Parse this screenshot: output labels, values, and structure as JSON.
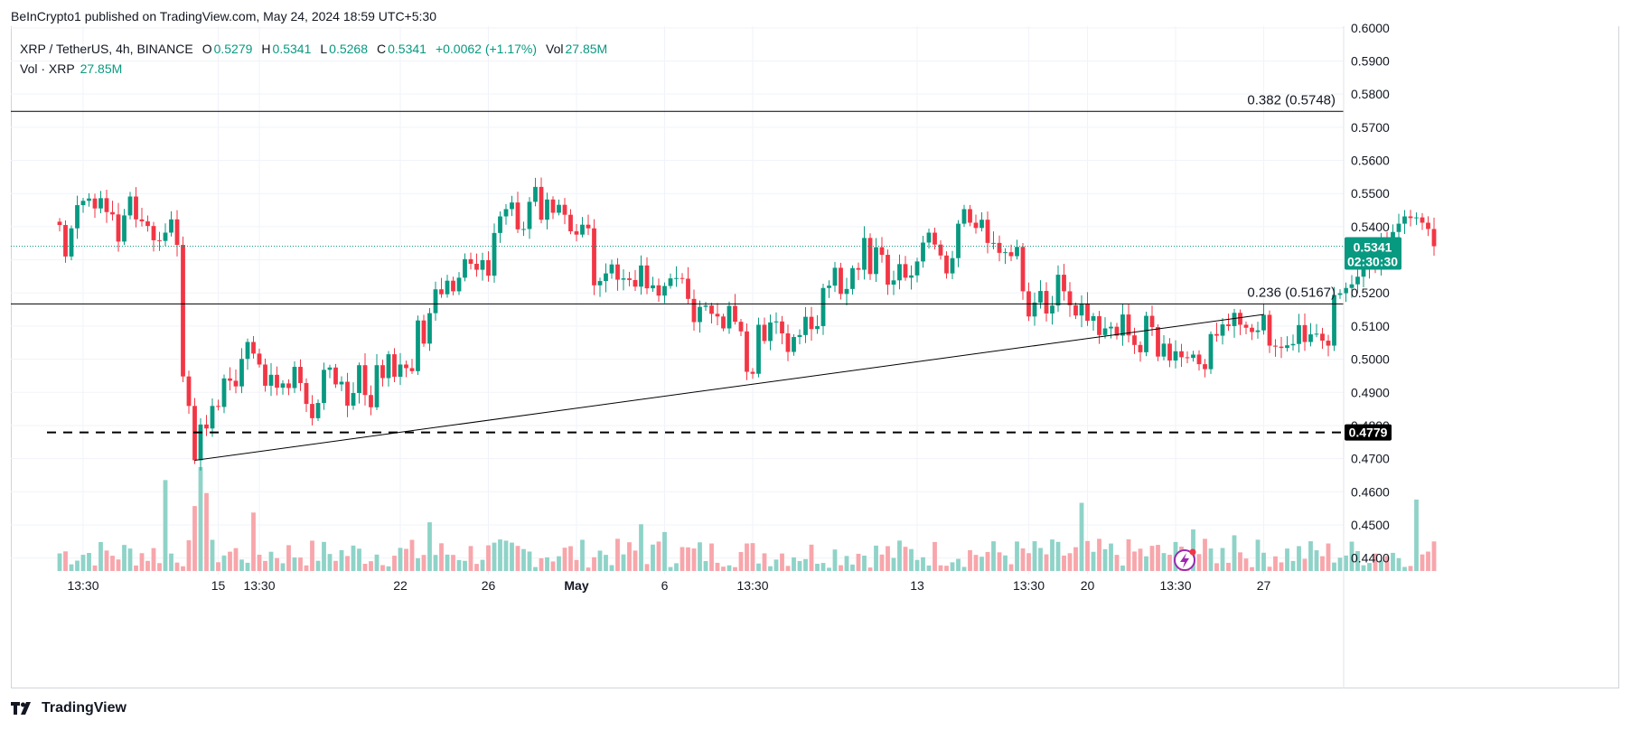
{
  "header": {
    "publisher_line": "BeInCrypto1 published on TradingView.com, May 24, 2024 18:59 UTC+5:30"
  },
  "legend": {
    "symbol": "XRP / TetherUS, 4h, BINANCE",
    "open_label": "O",
    "open": "0.5279",
    "high_label": "H",
    "high": "0.5341",
    "low_label": "L",
    "low": "0.5268",
    "close_label": "C",
    "close": "0.5341",
    "change": "+0.0062 (+1.17%)",
    "vol_label": "Vol",
    "vol": "27.85M",
    "vol_row_label": "Vol · XRP",
    "vol_row_value": "27.85M"
  },
  "footer": {
    "brand": "TradingView"
  },
  "colors": {
    "up": "#089981",
    "down": "#f23645",
    "vol_up": "#8fd3c8",
    "vol_down": "#f7a6ab",
    "grid": "#f0f3fa",
    "text": "#131722"
  },
  "chart_data": {
    "type": "candlestick",
    "title": "XRP / TetherUS, 4h, BINANCE",
    "ylim": [
      0.435,
      0.6005
    ],
    "y_ticks": [
      "0.6000",
      "0.5900",
      "0.5800",
      "0.5700",
      "0.5600",
      "0.5500",
      "0.5400",
      "0.5300",
      "0.5200",
      "0.5100",
      "0.5000",
      "0.4900",
      "0.4800",
      "0.4700",
      "0.4600",
      "0.4500",
      "0.4400"
    ],
    "x_ticks": [
      "13:30",
      "15",
      "13:30",
      "22",
      "26",
      "May",
      "6",
      "13:30",
      "13",
      "13:30",
      "20",
      "13:30",
      "27"
    ],
    "horizontal_levels": [
      {
        "label": "0.382 (0.5748)",
        "value": 0.5748,
        "style": "solid"
      },
      {
        "label": "0.236 (0.5167)",
        "value": 0.5167,
        "style": "solid"
      },
      {
        "label": "",
        "value": 0.4779,
        "style": "dashed"
      }
    ],
    "trendline": {
      "from": {
        "bar": 23,
        "price": 0.4695
      },
      "to": {
        "bar": 205,
        "price": 0.5135
      }
    },
    "price_badge": {
      "value": "0.5341",
      "countdown": "02:30:30"
    },
    "level_badge": {
      "value": "0.4779"
    },
    "closes": [
      0.5405,
      0.531,
      0.5395,
      0.5465,
      0.5478,
      0.5485,
      0.5455,
      0.5486,
      0.5444,
      0.5437,
      0.5355,
      0.5434,
      0.5491,
      0.5422,
      0.5416,
      0.5402,
      0.5359,
      0.5357,
      0.5382,
      0.5422,
      0.5345,
      0.4948,
      0.4859,
      0.4695,
      0.4803,
      0.4791,
      0.4859,
      0.4856,
      0.4942,
      0.4935,
      0.4918,
      0.5001,
      0.5052,
      0.5017,
      0.4984,
      0.492,
      0.4953,
      0.4914,
      0.4927,
      0.4913,
      0.4977,
      0.4928,
      0.4865,
      0.4822,
      0.4868,
      0.4968,
      0.4975,
      0.4924,
      0.4932,
      0.486,
      0.4898,
      0.4982,
      0.4892,
      0.4855,
      0.4982,
      0.4943,
      0.5015,
      0.4947,
      0.4984,
      0.4973,
      0.4964,
      0.5117,
      0.5047,
      0.5139,
      0.5211,
      0.5196,
      0.5237,
      0.5205,
      0.5246,
      0.5302,
      0.5288,
      0.527,
      0.5299,
      0.5252,
      0.5381,
      0.5431,
      0.5453,
      0.5473,
      0.5392,
      0.5393,
      0.5475,
      0.552,
      0.5421,
      0.5482,
      0.5442,
      0.5466,
      0.5436,
      0.5386,
      0.5376,
      0.5406,
      0.5395,
      0.5223,
      0.5236,
      0.5259,
      0.5286,
      0.524,
      0.5244,
      0.5239,
      0.5219,
      0.5283,
      0.5214,
      0.5223,
      0.5192,
      0.5221,
      0.5244,
      0.5245,
      0.5243,
      0.5182,
      0.5112,
      0.5158,
      0.5162,
      0.5137,
      0.5129,
      0.5093,
      0.5161,
      0.5113,
      0.5084,
      0.4962,
      0.4956,
      0.5104,
      0.5055,
      0.5111,
      0.5114,
      0.5078,
      0.5022,
      0.5067,
      0.5073,
      0.5128,
      0.5091,
      0.51,
      0.5215,
      0.5222,
      0.5276,
      0.5197,
      0.5212,
      0.5275,
      0.527,
      0.5366,
      0.5257,
      0.5338,
      0.5315,
      0.5225,
      0.5238,
      0.5287,
      0.5246,
      0.5253,
      0.5295,
      0.5352,
      0.5382,
      0.5346,
      0.5313,
      0.5259,
      0.5305,
      0.5409,
      0.5453,
      0.5412,
      0.5396,
      0.5421,
      0.5351,
      0.5351,
      0.5321,
      0.5323,
      0.5311,
      0.5339,
      0.5205,
      0.5129,
      0.5171,
      0.5206,
      0.5138,
      0.5162,
      0.5255,
      0.5205,
      0.5163,
      0.5132,
      0.5167,
      0.5116,
      0.513,
      0.5073,
      0.5093,
      0.5098,
      0.5071,
      0.5135,
      0.5072,
      0.5043,
      0.5021,
      0.5131,
      0.5097,
      0.5008,
      0.5047,
      0.4996,
      0.5024,
      0.5006,
      0.5004,
      0.5014,
      0.4985,
      0.497,
      0.5076,
      0.5071,
      0.5105,
      0.51,
      0.514,
      0.5104,
      0.5095,
      0.5082,
      0.5087,
      0.5134,
      0.5041,
      0.5038,
      0.5034,
      0.5042,
      0.5046,
      0.5103,
      0.5052,
      0.5075,
      0.5077,
      0.5056,
      0.5041,
      0.5194,
      0.5199,
      0.5215,
      0.5226,
      0.5249,
      0.5274,
      0.5294,
      0.5284,
      0.5368,
      0.5328,
      0.5384,
      0.5409,
      0.5431,
      0.5426,
      0.5428,
      0.5412,
      0.5393,
      0.5341
    ]
  }
}
